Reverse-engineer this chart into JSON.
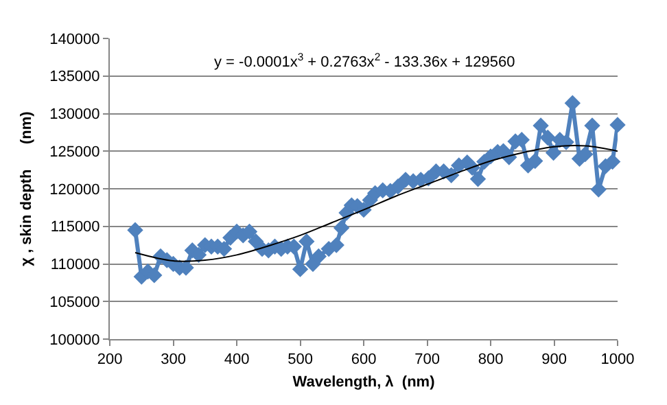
{
  "chart_data": {
    "type": "line",
    "xlabel": "Wavelength, λ  (nm)",
    "ylabel": "χ , skin depth      (nm)",
    "annotations": [
      "y = -0.0001x$^{3}$ + 0.2763x$^{2}$ - 133.36x + 129560"
    ],
    "xlim": [
      200,
      1000
    ],
    "xticks": [
      200,
      300,
      400,
      500,
      600,
      700,
      800,
      900,
      1000
    ],
    "ylim": [
      100000,
      140000
    ],
    "yticks": [
      100000,
      105000,
      110000,
      115000,
      120000,
      125000,
      130000,
      135000,
      140000
    ],
    "grid": "y",
    "marker": "diamond",
    "line_style": "solid",
    "series": [
      {
        "color": "#4f81bd",
        "x": [
          240,
          250,
          260,
          270,
          280,
          290,
          300,
          310,
          320,
          330,
          340,
          350,
          360,
          370,
          380,
          390,
          400,
          410,
          420,
          430,
          440,
          450,
          460,
          470,
          480,
          490,
          500,
          510,
          520,
          529,
          545,
          557,
          565,
          573,
          581,
          590,
          600,
          610,
          618,
          630,
          642,
          654,
          666,
          678,
          690,
          702,
          714,
          726,
          738,
          750,
          763,
          771,
          780,
          790,
          800,
          811,
          820,
          829,
          839,
          849,
          859,
          870,
          879,
          890,
          899,
          909,
          919,
          929,
          940,
          949,
          960,
          970,
          981,
          992,
          1000
        ],
        "values": [
          114500,
          108300,
          109000,
          108500,
          111000,
          110500,
          110000,
          109500,
          109500,
          111800,
          111200,
          112500,
          112300,
          112300,
          112000,
          113500,
          114300,
          113800,
          114300,
          113000,
          112000,
          111800,
          112300,
          112000,
          112300,
          112300,
          109300,
          113000,
          110000,
          111000,
          112000,
          112500,
          114800,
          116800,
          117800,
          117700,
          117200,
          118500,
          119400,
          119800,
          119700,
          120300,
          121200,
          121000,
          121200,
          121400,
          122300,
          122300,
          121800,
          123100,
          123500,
          122800,
          121300,
          123600,
          124300,
          124900,
          125000,
          124200,
          126300,
          126500,
          123100,
          123700,
          128400,
          126800,
          124800,
          126500,
          126200,
          131400,
          124000,
          124600,
          128400,
          119900,
          123000,
          123600,
          128500
        ]
      },
      {
        "color": "#000000",
        "type": "line",
        "marker": "none",
        "x": [
          240,
          300,
          350,
          400,
          450,
          500,
          550,
          600,
          650,
          700,
          750,
          800,
          850,
          900,
          950,
          1000
        ],
        "values": [
          111500,
          110400,
          110500,
          111200,
          112400,
          113800,
          115500,
          117200,
          119000,
          120600,
          122200,
          123700,
          124800,
          125600,
          125700,
          125000
        ]
      }
    ]
  }
}
